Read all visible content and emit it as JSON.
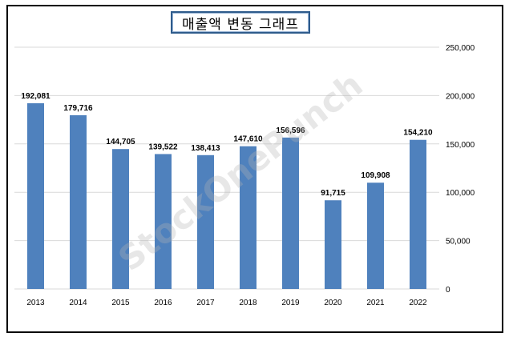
{
  "chart_data": {
    "type": "bar",
    "title": "매출액 변동 그래프",
    "xlabel": "",
    "ylabel": "",
    "categories": [
      "2013",
      "2014",
      "2015",
      "2016",
      "2017",
      "2018",
      "2019",
      "2020",
      "2021",
      "2022"
    ],
    "values": [
      192081,
      179716,
      144705,
      139522,
      138413,
      147610,
      156596,
      91715,
      109908,
      154210
    ],
    "value_labels": [
      "192,081",
      "179,716",
      "144,705",
      "139,522",
      "138,413",
      "147,610",
      "156,596",
      "91,715",
      "109,908",
      "154,210"
    ],
    "ylim": [
      0,
      250000
    ],
    "yticks": [
      0,
      50000,
      100000,
      150000,
      200000,
      250000
    ],
    "ytick_labels": [
      "0",
      "50,000",
      "100,000",
      "150,000",
      "200,000",
      "250,000"
    ],
    "y_axis_position": "right",
    "grid": true,
    "legend": "none",
    "bar_color": "#4f81bd"
  },
  "watermark": "StockOnePunch"
}
